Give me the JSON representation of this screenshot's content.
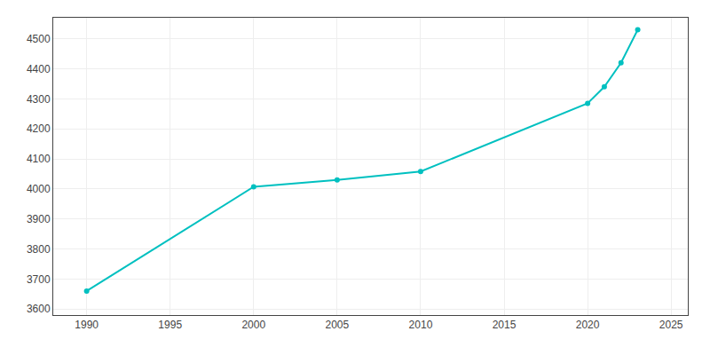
{
  "chart_data": {
    "type": "line",
    "x": [
      1990,
      2000,
      2005,
      2010,
      2020,
      2021,
      2022,
      2023
    ],
    "values": [
      3660,
      4007,
      4030,
      4058,
      4285,
      4340,
      4420,
      4530
    ],
    "color": "#00C0C0",
    "marker": "circle",
    "xlim": [
      1988,
      2026
    ],
    "ylim": [
      3580,
      4570
    ],
    "xticks": [
      1990,
      1995,
      2000,
      2005,
      2010,
      2015,
      2020,
      2025
    ],
    "yticks": [
      3600,
      3700,
      3800,
      3900,
      4000,
      4100,
      4200,
      4300,
      4400,
      4500
    ],
    "grid": true
  }
}
